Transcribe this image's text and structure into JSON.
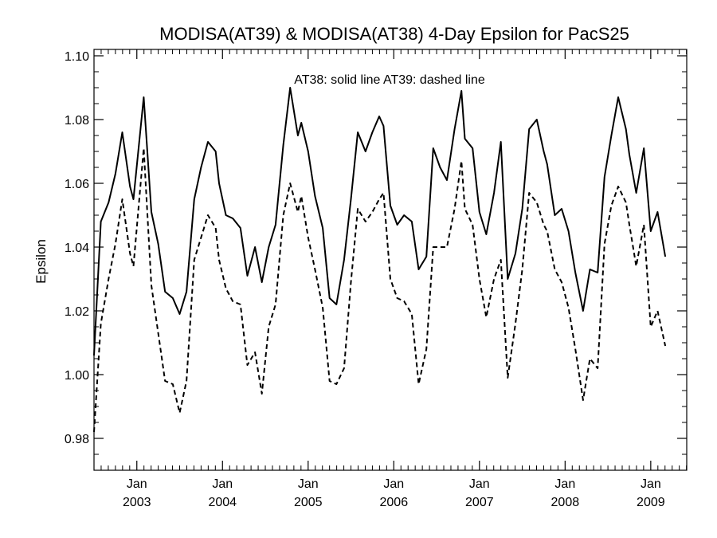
{
  "chart_data": {
    "type": "line",
    "title": "MODISA(AT39) & MODISA(AT38) 4-Day Epsilon for PacS25",
    "xlabel": "",
    "ylabel": "Epsilon",
    "annotation": "AT38: solid line   AT39: dashed line",
    "xlim": [
      2002.5,
      2009.42
    ],
    "ylim": [
      0.97,
      1.102
    ],
    "yticks": [
      0.98,
      1.0,
      1.02,
      1.04,
      1.06,
      1.08,
      1.1
    ],
    "ytick_labels": [
      "0.98",
      "1.00",
      "1.02",
      "1.04",
      "1.06",
      "1.08",
      "1.10"
    ],
    "xticks": [
      {
        "x": 2003.0,
        "month": "Jan",
        "year": "2003"
      },
      {
        "x": 2004.0,
        "month": "Jan",
        "year": "2004"
      },
      {
        "x": 2005.0,
        "month": "Jan",
        "year": "2005"
      },
      {
        "x": 2006.0,
        "month": "Jan",
        "year": "2006"
      },
      {
        "x": 2007.0,
        "month": "Jan",
        "year": "2007"
      },
      {
        "x": 2008.0,
        "month": "Jan",
        "year": "2008"
      },
      {
        "x": 2009.0,
        "month": "Jan",
        "year": "2009"
      }
    ],
    "grid": false,
    "series": [
      {
        "name": "AT38",
        "style": "solid",
        "color": "#000000",
        "points": [
          [
            2002.5,
            1.006
          ],
          [
            2002.58,
            1.048
          ],
          [
            2002.67,
            1.054
          ],
          [
            2002.75,
            1.063
          ],
          [
            2002.83,
            1.076
          ],
          [
            2002.92,
            1.059
          ],
          [
            2002.96,
            1.055
          ],
          [
            2003.08,
            1.087
          ],
          [
            2003.17,
            1.051
          ],
          [
            2003.25,
            1.041
          ],
          [
            2003.33,
            1.026
          ],
          [
            2003.42,
            1.024
          ],
          [
            2003.5,
            1.019
          ],
          [
            2003.58,
            1.026
          ],
          [
            2003.67,
            1.055
          ],
          [
            2003.75,
            1.065
          ],
          [
            2003.83,
            1.073
          ],
          [
            2003.92,
            1.07
          ],
          [
            2003.96,
            1.06
          ],
          [
            2004.04,
            1.05
          ],
          [
            2004.12,
            1.049
          ],
          [
            2004.21,
            1.046
          ],
          [
            2004.29,
            1.031
          ],
          [
            2004.38,
            1.04
          ],
          [
            2004.46,
            1.029
          ],
          [
            2004.54,
            1.04
          ],
          [
            2004.62,
            1.047
          ],
          [
            2004.71,
            1.072
          ],
          [
            2004.79,
            1.09
          ],
          [
            2004.88,
            1.075
          ],
          [
            2004.92,
            1.079
          ],
          [
            2005.0,
            1.07
          ],
          [
            2005.08,
            1.056
          ],
          [
            2005.17,
            1.046
          ],
          [
            2005.25,
            1.024
          ],
          [
            2005.33,
            1.022
          ],
          [
            2005.42,
            1.036
          ],
          [
            2005.5,
            1.055
          ],
          [
            2005.58,
            1.076
          ],
          [
            2005.67,
            1.07
          ],
          [
            2005.75,
            1.076
          ],
          [
            2005.83,
            1.081
          ],
          [
            2005.88,
            1.078
          ],
          [
            2005.96,
            1.053
          ],
          [
            2006.04,
            1.047
          ],
          [
            2006.12,
            1.05
          ],
          [
            2006.21,
            1.048
          ],
          [
            2006.29,
            1.033
          ],
          [
            2006.38,
            1.037
          ],
          [
            2006.46,
            1.071
          ],
          [
            2006.54,
            1.065
          ],
          [
            2006.62,
            1.061
          ],
          [
            2006.71,
            1.077
          ],
          [
            2006.79,
            1.089
          ],
          [
            2006.83,
            1.074
          ],
          [
            2006.92,
            1.071
          ],
          [
            2007.0,
            1.051
          ],
          [
            2007.08,
            1.044
          ],
          [
            2007.17,
            1.057
          ],
          [
            2007.25,
            1.073
          ],
          [
            2007.33,
            1.03
          ],
          [
            2007.42,
            1.038
          ],
          [
            2007.5,
            1.052
          ],
          [
            2007.58,
            1.077
          ],
          [
            2007.67,
            1.08
          ],
          [
            2007.75,
            1.07
          ],
          [
            2007.79,
            1.066
          ],
          [
            2007.88,
            1.05
          ],
          [
            2007.96,
            1.052
          ],
          [
            2008.04,
            1.045
          ],
          [
            2008.12,
            1.032
          ],
          [
            2008.21,
            1.02
          ],
          [
            2008.29,
            1.033
          ],
          [
            2008.38,
            1.032
          ],
          [
            2008.46,
            1.062
          ],
          [
            2008.54,
            1.075
          ],
          [
            2008.62,
            1.087
          ],
          [
            2008.71,
            1.077
          ],
          [
            2008.75,
            1.069
          ],
          [
            2008.83,
            1.057
          ],
          [
            2008.92,
            1.071
          ],
          [
            2009.0,
            1.045
          ],
          [
            2009.08,
            1.051
          ],
          [
            2009.17,
            1.037
          ]
        ]
      },
      {
        "name": "AT39",
        "style": "dashed",
        "color": "#000000",
        "points": [
          [
            2002.5,
            0.982
          ],
          [
            2002.58,
            1.016
          ],
          [
            2002.67,
            1.03
          ],
          [
            2002.75,
            1.041
          ],
          [
            2002.83,
            1.055
          ],
          [
            2002.92,
            1.038
          ],
          [
            2002.96,
            1.034
          ],
          [
            2003.08,
            1.071
          ],
          [
            2003.17,
            1.028
          ],
          [
            2003.25,
            1.013
          ],
          [
            2003.33,
            0.998
          ],
          [
            2003.42,
            0.997
          ],
          [
            2003.5,
            0.988
          ],
          [
            2003.58,
            0.998
          ],
          [
            2003.67,
            1.036
          ],
          [
            2003.75,
            1.043
          ],
          [
            2003.83,
            1.05
          ],
          [
            2003.92,
            1.046
          ],
          [
            2003.96,
            1.036
          ],
          [
            2004.04,
            1.027
          ],
          [
            2004.12,
            1.023
          ],
          [
            2004.21,
            1.022
          ],
          [
            2004.29,
            1.003
          ],
          [
            2004.38,
            1.007
          ],
          [
            2004.46,
            0.994
          ],
          [
            2004.54,
            1.015
          ],
          [
            2004.62,
            1.022
          ],
          [
            2004.71,
            1.05
          ],
          [
            2004.79,
            1.06
          ],
          [
            2004.88,
            1.051
          ],
          [
            2004.92,
            1.056
          ],
          [
            2005.0,
            1.043
          ],
          [
            2005.08,
            1.033
          ],
          [
            2005.17,
            1.021
          ],
          [
            2005.25,
            0.998
          ],
          [
            2005.33,
            0.997
          ],
          [
            2005.42,
            1.002
          ],
          [
            2005.5,
            1.029
          ],
          [
            2005.58,
            1.052
          ],
          [
            2005.67,
            1.048
          ],
          [
            2005.75,
            1.051
          ],
          [
            2005.83,
            1.055
          ],
          [
            2005.88,
            1.057
          ],
          [
            2005.96,
            1.03
          ],
          [
            2006.04,
            1.024
          ],
          [
            2006.12,
            1.023
          ],
          [
            2006.21,
            1.019
          ],
          [
            2006.29,
            0.997
          ],
          [
            2006.38,
            1.008
          ],
          [
            2006.46,
            1.04
          ],
          [
            2006.54,
            1.04
          ],
          [
            2006.62,
            1.04
          ],
          [
            2006.71,
            1.052
          ],
          [
            2006.79,
            1.067
          ],
          [
            2006.83,
            1.052
          ],
          [
            2006.92,
            1.047
          ],
          [
            2007.0,
            1.03
          ],
          [
            2007.08,
            1.018
          ],
          [
            2007.17,
            1.03
          ],
          [
            2007.25,
            1.036
          ],
          [
            2007.33,
            0.999
          ],
          [
            2007.42,
            1.016
          ],
          [
            2007.5,
            1.033
          ],
          [
            2007.58,
            1.057
          ],
          [
            2007.67,
            1.054
          ],
          [
            2007.75,
            1.047
          ],
          [
            2007.79,
            1.045
          ],
          [
            2007.88,
            1.033
          ],
          [
            2007.96,
            1.029
          ],
          [
            2008.04,
            1.021
          ],
          [
            2008.12,
            1.008
          ],
          [
            2008.21,
            0.992
          ],
          [
            2008.29,
            1.005
          ],
          [
            2008.38,
            1.002
          ],
          [
            2008.46,
            1.041
          ],
          [
            2008.54,
            1.053
          ],
          [
            2008.62,
            1.059
          ],
          [
            2008.71,
            1.054
          ],
          [
            2008.75,
            1.047
          ],
          [
            2008.83,
            1.034
          ],
          [
            2008.92,
            1.047
          ],
          [
            2009.0,
            1.015
          ],
          [
            2009.08,
            1.02
          ],
          [
            2009.17,
            1.009
          ]
        ]
      }
    ]
  }
}
